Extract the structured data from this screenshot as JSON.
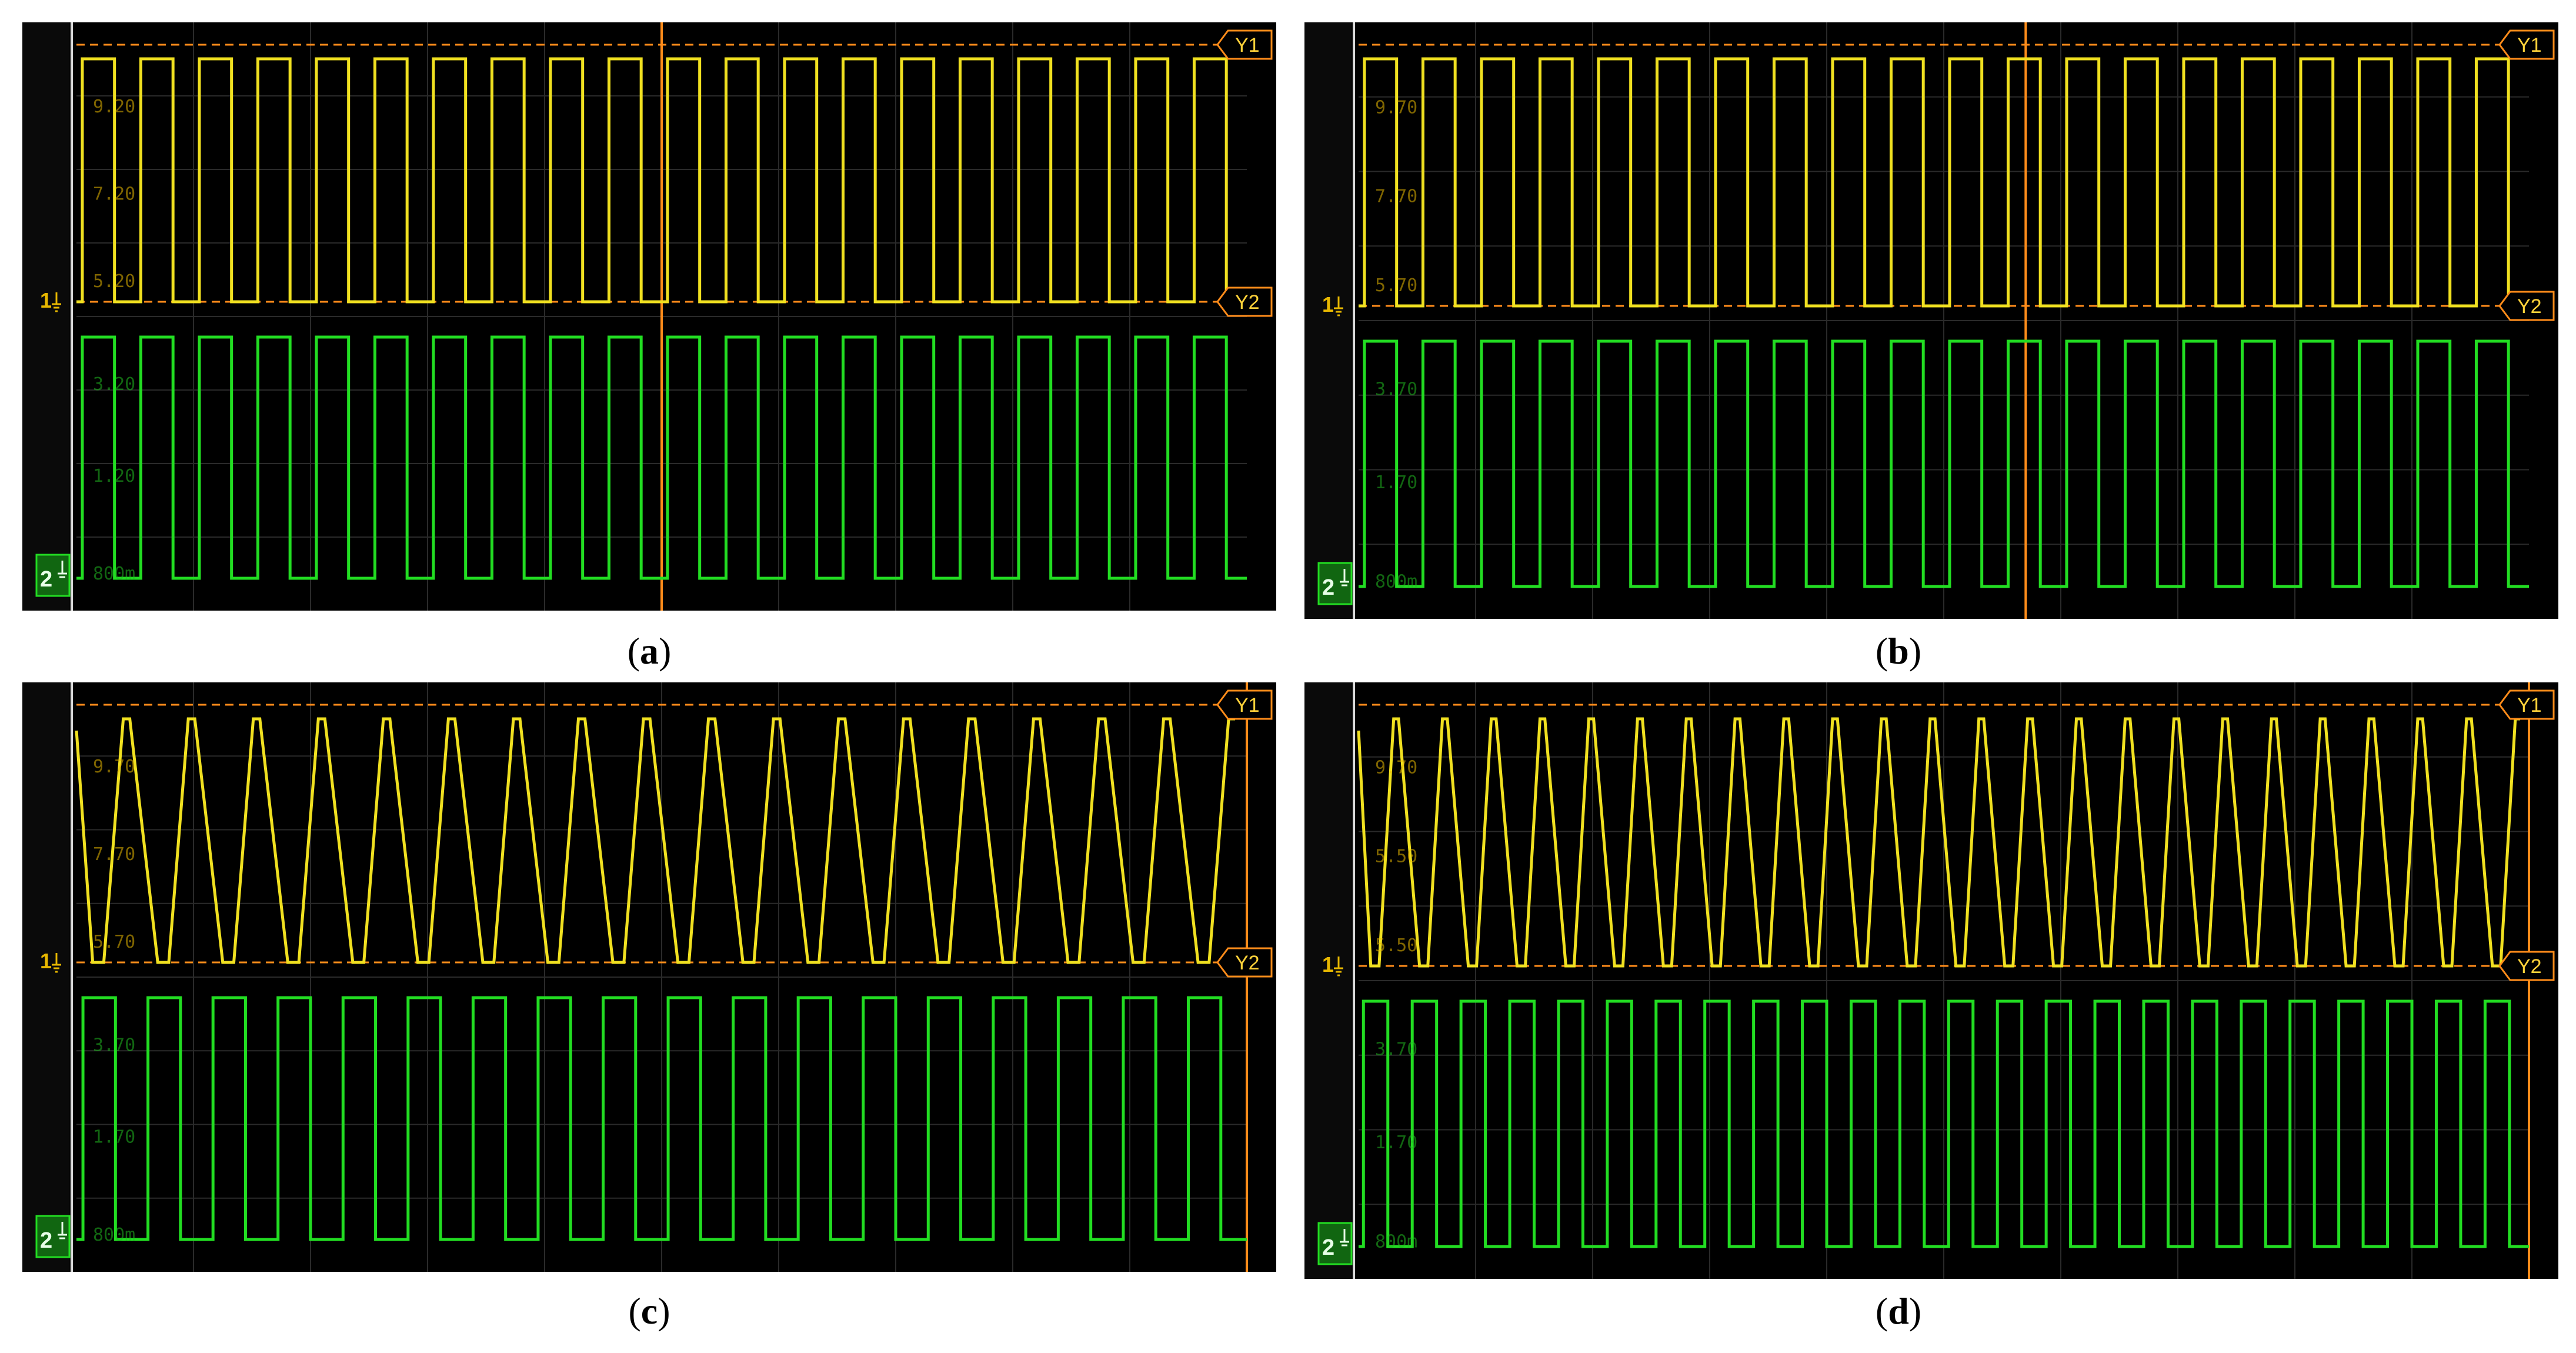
{
  "colors": {
    "screen_bg": "#000000",
    "grid": "#2a2a2a",
    "ch1": "#f0e020",
    "ch2": "#22dd22",
    "cursor": "#ff8c1a",
    "label_ch1": "#e8b800",
    "label_ch2": "#22bb22"
  },
  "chart_data": [
    {
      "type": "line",
      "caption_letter": "a",
      "y1_label": "Y1",
      "y2_label": "Y2",
      "ch1_marker": "1",
      "ch2_marker": "2",
      "ch1_ticks": [
        "9.20",
        "7.20",
        "5.20"
      ],
      "ch2_ticks": [
        "3.20",
        "1.20",
        "800m"
      ],
      "series": [
        {
          "channel": 1,
          "waveform": "square",
          "cycles": 20,
          "duty": 0.55,
          "low": 0,
          "high": 1
        },
        {
          "channel": 2,
          "waveform": "square",
          "cycles": 20,
          "duty": 0.55,
          "low": 0,
          "high": 1
        }
      ],
      "vertical_cursor": 0.5
    },
    {
      "type": "line",
      "caption_letter": "b",
      "y1_label": "Y1",
      "y2_label": "Y2",
      "ch1_marker": "1",
      "ch2_marker": "2",
      "ch1_ticks": [
        "9.70",
        "7.70",
        "5.70"
      ],
      "ch2_ticks": [
        "3.70",
        "1.70",
        "800m"
      ],
      "series": [
        {
          "channel": 1,
          "waveform": "square",
          "cycles": 20,
          "duty": 0.55,
          "low": 0,
          "high": 1
        },
        {
          "channel": 2,
          "waveform": "square",
          "cycles": 20,
          "duty": 0.55,
          "low": 0,
          "high": 1
        }
      ],
      "vertical_cursor": 0.57
    },
    {
      "type": "line",
      "caption_letter": "c",
      "y1_label": "Y1",
      "y2_label": "Y2",
      "ch1_marker": "1",
      "ch2_marker": "2",
      "ch1_ticks": [
        "9.70",
        "7.70",
        "5.70"
      ],
      "ch2_ticks": [
        "3.70",
        "1.70",
        "800m"
      ],
      "series": [
        {
          "channel": 1,
          "waveform": "triangle",
          "cycles": 18,
          "low": 0,
          "high": 1
        },
        {
          "channel": 2,
          "waveform": "square",
          "cycles": 18,
          "duty": 0.5,
          "low": 0,
          "high": 1
        }
      ],
      "vertical_cursor": 1.0
    },
    {
      "type": "line",
      "caption_letter": "d",
      "y1_label": "Y1",
      "y2_label": "Y2",
      "ch1_marker": "1",
      "ch2_marker": "2",
      "ch1_ticks": [
        "9.70",
        "5.50",
        "5.50"
      ],
      "ch2_ticks": [
        "3.70",
        "1.70",
        "800m"
      ],
      "series": [
        {
          "channel": 1,
          "waveform": "triangle",
          "cycles": 24,
          "low": 0,
          "high": 1
        },
        {
          "channel": 2,
          "waveform": "square",
          "cycles": 24,
          "duty": 0.5,
          "low": 0,
          "high": 1
        }
      ],
      "vertical_cursor": 1.0
    }
  ]
}
